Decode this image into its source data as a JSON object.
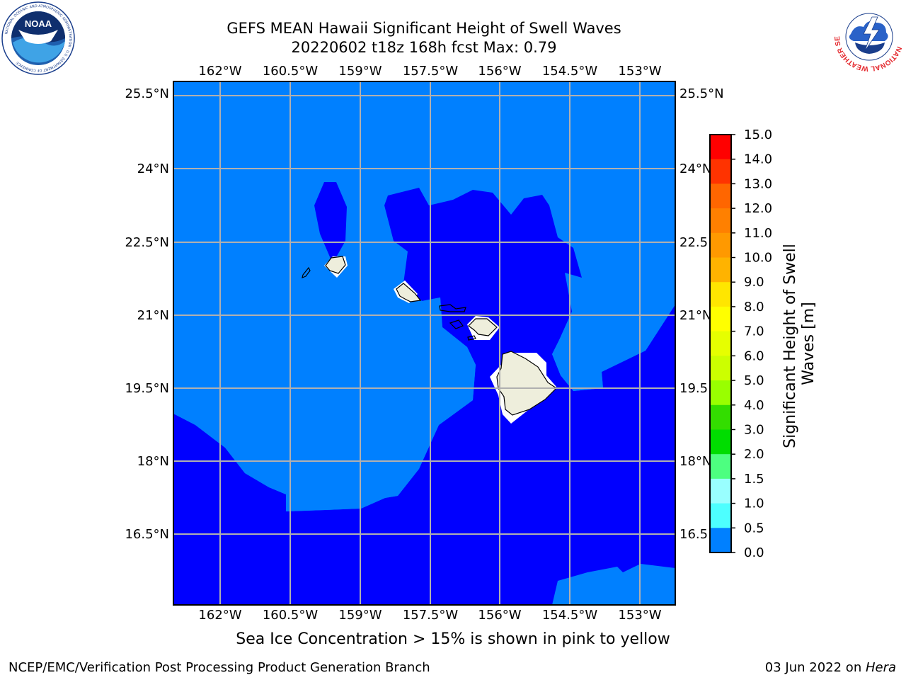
{
  "title": {
    "line1": "GEFS MEAN Hawaii Significant Height of Swell Waves",
    "line2": "20220602 t18z 168h fcst   Max: 0.79"
  },
  "logos": {
    "left": {
      "name": "noaa-logo",
      "text": "NOAA",
      "ring_text": "NATIONAL OCEANIC AND ATMOSPHERIC ADMINISTRATION · U.S. DEPARTMENT OF COMMERCE"
    },
    "right": {
      "name": "nws-logo",
      "ring_text": "NATIONAL WEATHER SERVICE"
    }
  },
  "map": {
    "lon_range": [
      -163.0,
      -152.2
    ],
    "lat_range": [
      15.0,
      25.8
    ],
    "lon_ticks": [
      "162°W",
      "160.5°W",
      "159°W",
      "157.5°W",
      "156°W",
      "154.5°W",
      "153°W"
    ],
    "lat_ticks_left": [
      "25.5°N",
      "24°N",
      "22.5°N",
      "21°N",
      "19.5°N",
      "18°N",
      "16.5°N"
    ],
    "lat_ticks_right": [
      "25.5°N",
      "24°N",
      "22.5",
      "21°N",
      "19.5",
      "18°N",
      "16.5"
    ],
    "grid": true,
    "colors": {
      "light_blue": "#0080ff",
      "dark_blue": "#0000ff",
      "land": "#eeeedc",
      "grid": "#b0b0b0"
    }
  },
  "colorbar": {
    "label": "Significant Height of Swell Waves [m]",
    "label_line1": "Significant Height of Swell",
    "label_line2": "Waves [m]",
    "ticks": [
      "15.0",
      "14.0",
      "13.0",
      "12.0",
      "11.0",
      "10.0",
      "9.0",
      "8.0",
      "7.0",
      "6.0",
      "5.0",
      "4.0",
      "3.0",
      "2.0",
      "1.5",
      "1.0",
      "0.5",
      "0.0"
    ],
    "colors": [
      "#ff0000",
      "#ff3300",
      "#ff6600",
      "#ff8000",
      "#ff9900",
      "#ffb300",
      "#ffe600",
      "#ffff00",
      "#e6ff00",
      "#ccff00",
      "#99ff00",
      "#33dd00",
      "#00dd00",
      "#4dff80",
      "#99ffff",
      "#4dffff",
      "#00ffff",
      "#0080ff",
      "#0000ff"
    ]
  },
  "footer": {
    "ice_note": "Sea Ice Concentration > 15% is shown in pink to yellow",
    "credit": "NCEP/EMC/Verification Post Processing Product Generation Branch",
    "date_prefix": "03 Jun 2022 on ",
    "host": "Hera"
  }
}
